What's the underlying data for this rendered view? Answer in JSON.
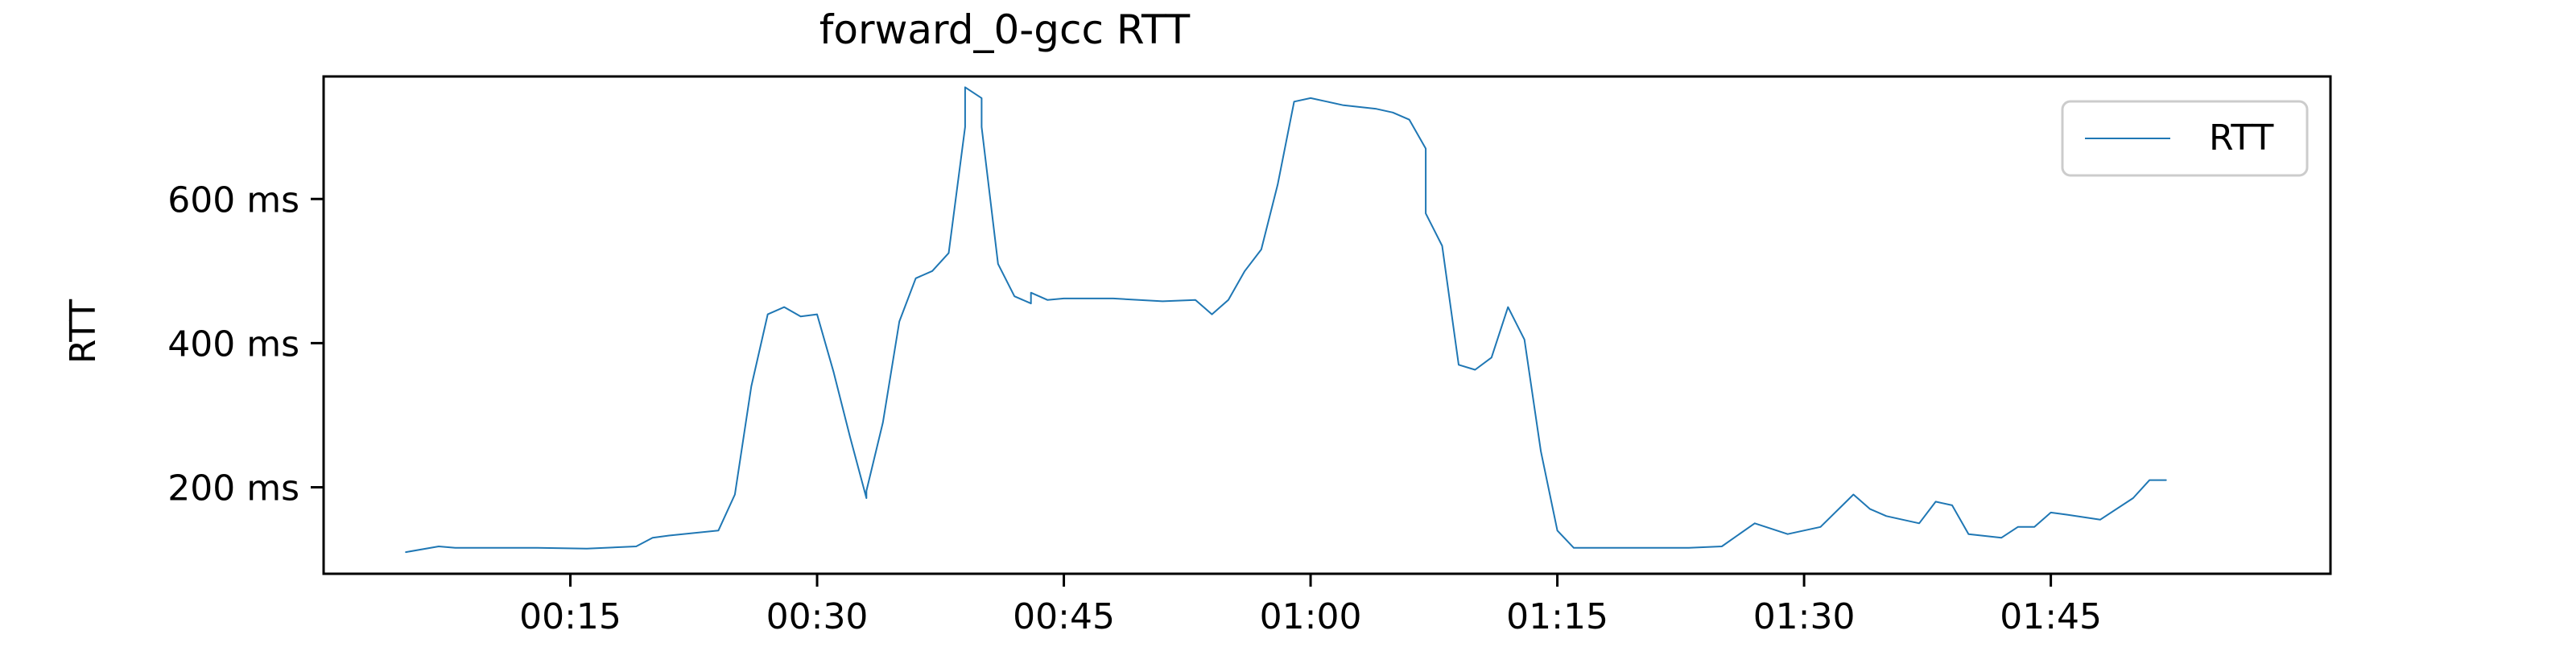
{
  "chart_data": {
    "type": "line",
    "title": "forward_0-gcc RTT",
    "xlabel": "",
    "ylabel": "RTT",
    "x_unit": "mm:ss",
    "y_unit": "ms",
    "xlim": [
      "00:00",
      "02:02"
    ],
    "ylim": [
      80,
      770
    ],
    "x_ticks": [
      "00:15",
      "00:30",
      "00:45",
      "01:00",
      "01:15",
      "01:30",
      "01:45"
    ],
    "y_ticks": [
      "200 ms",
      "400 ms",
      "600 ms"
    ],
    "y_tick_values": [
      200,
      400,
      600
    ],
    "grid": false,
    "legend": {
      "position": "top-right",
      "entries": [
        "RTT"
      ]
    },
    "colors": {
      "series": "#1f77b4",
      "axes": "#000000",
      "background": "#ffffff"
    },
    "series": [
      {
        "name": "RTT",
        "x": [
          "00:05",
          "00:07",
          "00:08",
          "00:10",
          "00:13",
          "00:16",
          "00:19",
          "00:20",
          "00:21",
          "00:24",
          "00:25",
          "00:26",
          "00:27",
          "00:28",
          "00:29",
          "00:30",
          "00:31",
          "00:32",
          "00:33",
          "00:33",
          "00:34",
          "00:35",
          "00:36",
          "00:37",
          "00:38",
          "00:39",
          "00:39",
          "00:40",
          "00:40",
          "00:41",
          "00:42",
          "00:43",
          "00:43",
          "00:44",
          "00:45",
          "00:48",
          "00:51",
          "00:53",
          "00:54",
          "00:55",
          "00:56",
          "00:57",
          "00:58",
          "00:59",
          "01:00",
          "01:01",
          "01:02",
          "01:04",
          "01:05",
          "01:06",
          "01:07",
          "01:07",
          "01:08",
          "01:09",
          "01:10",
          "01:11",
          "01:12",
          "01:13",
          "01:14",
          "01:15",
          "01:16",
          "01:17",
          "01:20",
          "01:23",
          "01:25",
          "01:27",
          "01:29",
          "01:31",
          "01:33",
          "01:34",
          "01:35",
          "01:37",
          "01:38",
          "01:39",
          "01:40",
          "01:42",
          "01:43",
          "01:44",
          "01:45",
          "01:46",
          "01:48",
          "01:50",
          "01:51",
          "01:52"
        ],
        "values": [
          110,
          118,
          116,
          116,
          116,
          115,
          118,
          130,
          133,
          140,
          190,
          340,
          440,
          450,
          437,
          440,
          360,
          270,
          185,
          195,
          290,
          430,
          490,
          500,
          525,
          700,
          755,
          740,
          700,
          510,
          465,
          455,
          470,
          460,
          462,
          462,
          458,
          460,
          440,
          460,
          500,
          530,
          620,
          735,
          740,
          735,
          730,
          725,
          720,
          710,
          670,
          580,
          535,
          370,
          363,
          380,
          450,
          405,
          250,
          140,
          116,
          116,
          116,
          116,
          118,
          150,
          135,
          145,
          190,
          170,
          160,
          150,
          180,
          175,
          135,
          130,
          145,
          145,
          165,
          162,
          155,
          185,
          210,
          210
        ]
      }
    ]
  }
}
